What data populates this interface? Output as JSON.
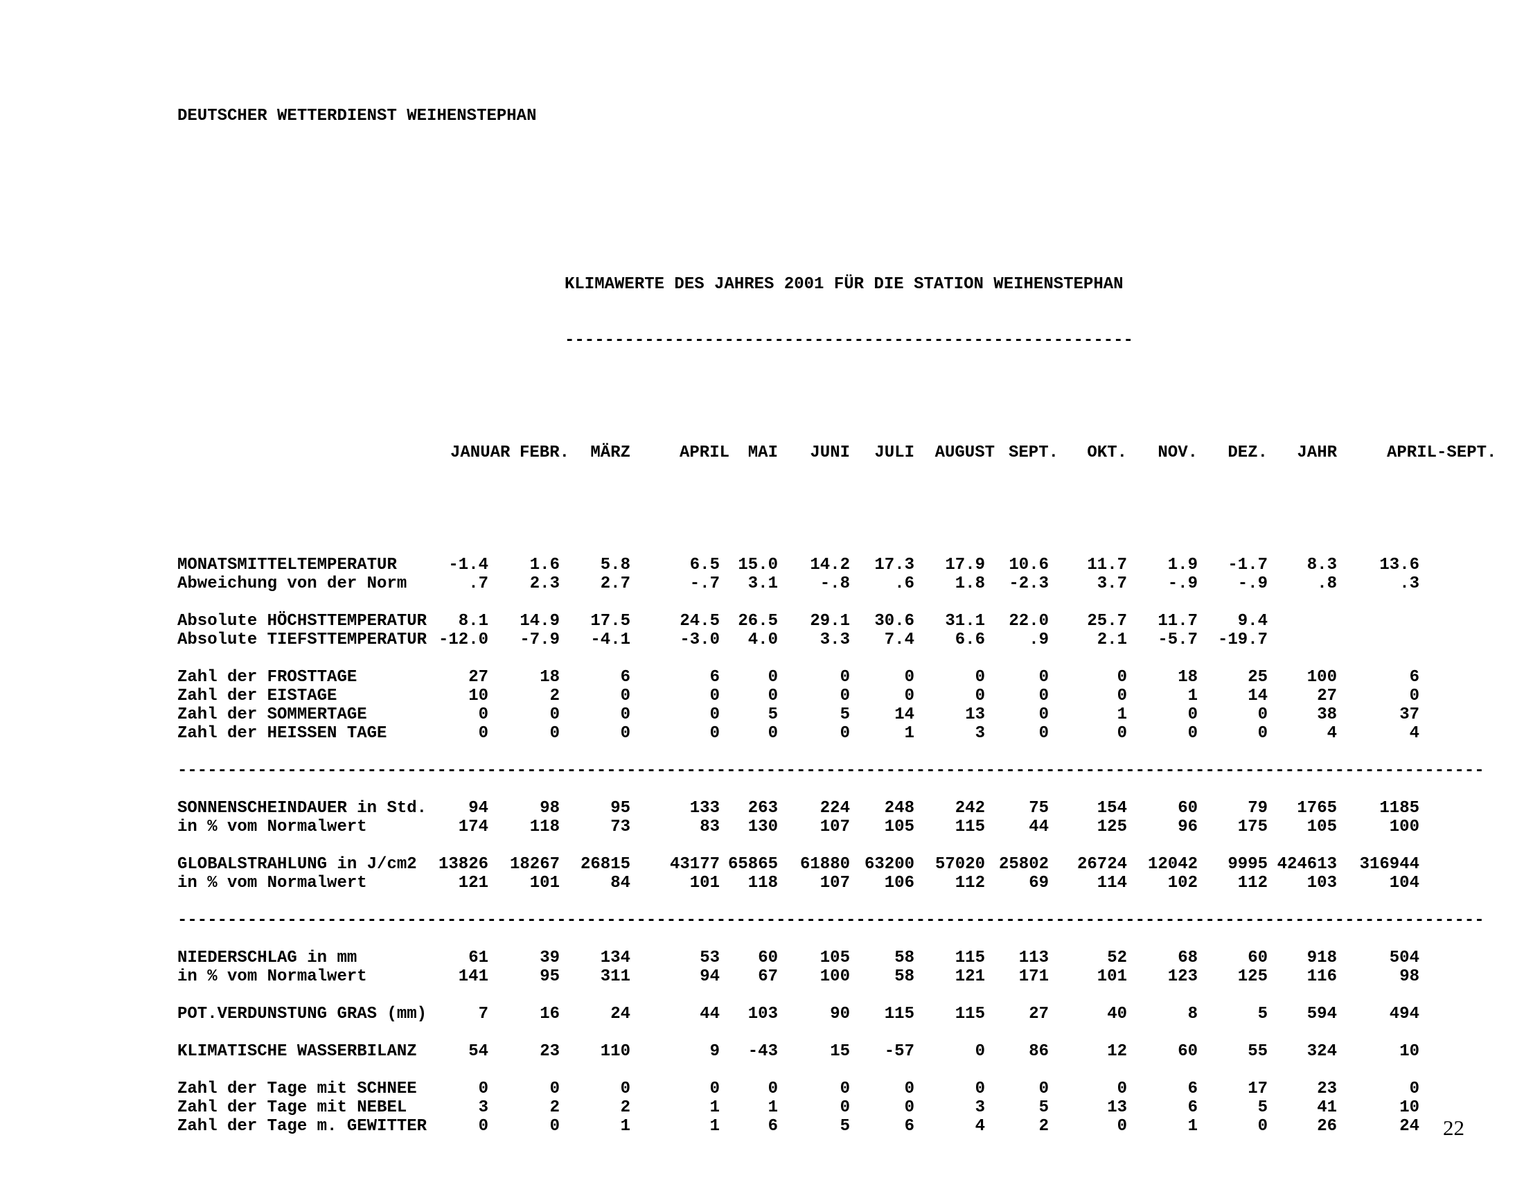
{
  "page": {
    "letterhead": "DEUTSCHER WETTERDIENST WEIHENSTEPHAN",
    "title": "KLIMAWERTE DES JAHRES 2001 FÜR DIE STATION WEIHENSTEPHAN",
    "title_underline": "---------------------------------------------------------",
    "section_separator": "-----------------------------------------------------------------------------------------------------------------------------------",
    "page_number": "22"
  },
  "table": {
    "columns": [
      "JANUAR",
      "FEBR.",
      "MÄRZ",
      "APRIL",
      "MAI",
      "JUNI",
      "JULI",
      "AUGUST",
      "SEPT.",
      "OKT.",
      "NOV.",
      "DEZ.",
      "JAHR",
      "APRIL-SEPT."
    ],
    "sections": [
      {
        "groups": [
          {
            "rows": [
              {
                "label": "MONATSMITTELTEMPERATUR",
                "values": [
                  "-1.4",
                  "1.6",
                  "5.8",
                  "6.5",
                  "15.0",
                  "14.2",
                  "17.3",
                  "17.9",
                  "10.6",
                  "11.7",
                  "1.9",
                  "-1.7",
                  "8.3",
                  "13.6"
                ]
              },
              {
                "label": "Abweichung von der Norm",
                "values": [
                  ".7",
                  "2.3",
                  "2.7",
                  "-.7",
                  "3.1",
                  "-.8",
                  ".6",
                  "1.8",
                  "-2.3",
                  "3.7",
                  "-.9",
                  "-.9",
                  ".8",
                  ".3"
                ]
              }
            ]
          },
          {
            "rows": [
              {
                "label": "Absolute HÖCHSTTEMPERATUR",
                "values": [
                  "8.1",
                  "14.9",
                  "17.5",
                  "24.5",
                  "26.5",
                  "29.1",
                  "30.6",
                  "31.1",
                  "22.0",
                  "25.7",
                  "11.7",
                  "9.4",
                  "",
                  ""
                ]
              },
              {
                "label": "Absolute TIEFSTTEMPERATUR",
                "values": [
                  "-12.0",
                  "-7.9",
                  "-4.1",
                  "-3.0",
                  "4.0",
                  "3.3",
                  "7.4",
                  "6.6",
                  ".9",
                  "2.1",
                  "-5.7",
                  "-19.7",
                  "",
                  ""
                ]
              }
            ]
          },
          {
            "rows": [
              {
                "label": "Zahl der FROSTTAGE",
                "values": [
                  "27",
                  "18",
                  "6",
                  "6",
                  "0",
                  "0",
                  "0",
                  "0",
                  "0",
                  "0",
                  "18",
                  "25",
                  "100",
                  "6"
                ]
              },
              {
                "label": "Zahl der EISTAGE",
                "values": [
                  "10",
                  "2",
                  "0",
                  "0",
                  "0",
                  "0",
                  "0",
                  "0",
                  "0",
                  "0",
                  "1",
                  "14",
                  "27",
                  "0"
                ]
              },
              {
                "label": "Zahl der SOMMERTAGE",
                "values": [
                  "0",
                  "0",
                  "0",
                  "0",
                  "5",
                  "5",
                  "14",
                  "13",
                  "0",
                  "1",
                  "0",
                  "0",
                  "38",
                  "37"
                ]
              },
              {
                "label": "Zahl der HEISSEN TAGE",
                "values": [
                  "0",
                  "0",
                  "0",
                  "0",
                  "0",
                  "0",
                  "1",
                  "3",
                  "0",
                  "0",
                  "0",
                  "0",
                  "4",
                  "4"
                ]
              }
            ]
          }
        ]
      },
      {
        "groups": [
          {
            "rows": [
              {
                "label": "SONNENSCHEINDAUER in Std.",
                "values": [
                  "94",
                  "98",
                  "95",
                  "133",
                  "263",
                  "224",
                  "248",
                  "242",
                  "75",
                  "154",
                  "60",
                  "79",
                  "1765",
                  "1185"
                ]
              },
              {
                "label": "in % vom Normalwert",
                "values": [
                  "174",
                  "118",
                  "73",
                  "83",
                  "130",
                  "107",
                  "105",
                  "115",
                  "44",
                  "125",
                  "96",
                  "175",
                  "105",
                  "100"
                ]
              }
            ]
          },
          {
            "rows": [
              {
                "label": "GLOBALSTRAHLUNG in J/cm2",
                "values": [
                  "13826",
                  "18267",
                  "26815",
                  "43177",
                  "65865",
                  "61880",
                  "63200",
                  "57020",
                  "25802",
                  "26724",
                  "12042",
                  "9995",
                  "424613",
                  "316944"
                ]
              },
              {
                "label": "in % vom Normalwert",
                "values": [
                  "121",
                  "101",
                  "84",
                  "101",
                  "118",
                  "107",
                  "106",
                  "112",
                  "69",
                  "114",
                  "102",
                  "112",
                  "103",
                  "104"
                ]
              }
            ]
          }
        ]
      },
      {
        "groups": [
          {
            "rows": [
              {
                "label": "NIEDERSCHLAG in mm",
                "values": [
                  "61",
                  "39",
                  "134",
                  "53",
                  "60",
                  "105",
                  "58",
                  "115",
                  "113",
                  "52",
                  "68",
                  "60",
                  "918",
                  "504"
                ]
              },
              {
                "label": "in % vom Normalwert",
                "values": [
                  "141",
                  "95",
                  "311",
                  "94",
                  "67",
                  "100",
                  "58",
                  "121",
                  "171",
                  "101",
                  "123",
                  "125",
                  "116",
                  "98"
                ]
              }
            ]
          },
          {
            "rows": [
              {
                "label": "POT.VERDUNSTUNG GRAS (mm)",
                "values": [
                  "7",
                  "16",
                  "24",
                  "44",
                  "103",
                  "90",
                  "115",
                  "115",
                  "27",
                  "40",
                  "8",
                  "5",
                  "594",
                  "494"
                ]
              }
            ]
          },
          {
            "rows": [
              {
                "label": "KLIMATISCHE WASSERBILANZ",
                "values": [
                  "54",
                  "23",
                  "110",
                  "9",
                  "-43",
                  "15",
                  "-57",
                  "0",
                  "86",
                  "12",
                  "60",
                  "55",
                  "324",
                  "10"
                ]
              }
            ]
          },
          {
            "rows": [
              {
                "label": "Zahl der Tage mit SCHNEE",
                "values": [
                  "0",
                  "0",
                  "0",
                  "0",
                  "0",
                  "0",
                  "0",
                  "0",
                  "0",
                  "0",
                  "6",
                  "17",
                  "23",
                  "0"
                ]
              },
              {
                "label": "Zahl der Tage mit NEBEL",
                "values": [
                  "3",
                  "2",
                  "2",
                  "1",
                  "1",
                  "0",
                  "0",
                  "3",
                  "5",
                  "13",
                  "6",
                  "5",
                  "41",
                  "10"
                ]
              },
              {
                "label": "Zahl der Tage m. GEWITTER",
                "values": [
                  "0",
                  "0",
                  "1",
                  "1",
                  "6",
                  "5",
                  "6",
                  "4",
                  "2",
                  "0",
                  "1",
                  "0",
                  "26",
                  "24"
                ]
              }
            ]
          }
        ]
      }
    ]
  }
}
